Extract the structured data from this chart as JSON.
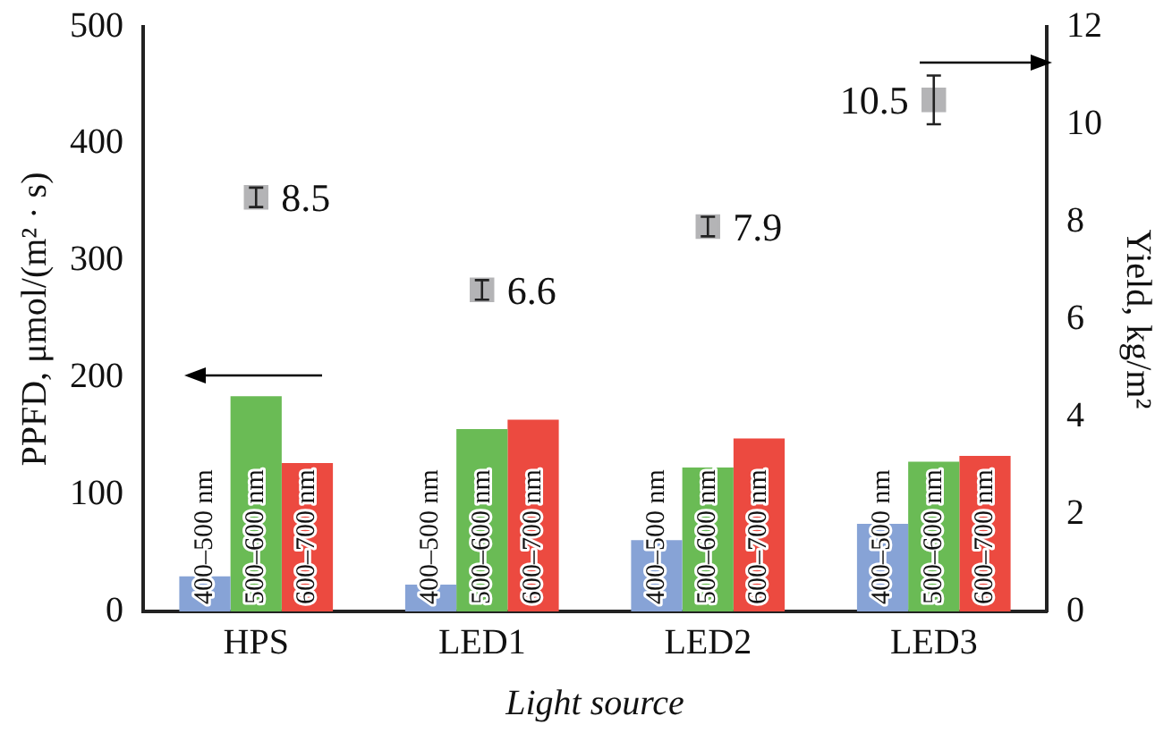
{
  "chart_data": {
    "type": "bar",
    "xlabel": "Light source",
    "ylabel": "PPFD, μmol/(m² · s)",
    "y2label": "Yield, kg/m²",
    "categories": [
      "HPS",
      "LED1",
      "LED2",
      "LED3"
    ],
    "series": [
      {
        "name": "400–500 nm",
        "color": "#87a3d6",
        "values": [
          30,
          23,
          61,
          75
        ]
      },
      {
        "name": "500–600 nm",
        "color": "#6abb55",
        "values": [
          184,
          156,
          123,
          128
        ]
      },
      {
        "name": "600–700 nm",
        "color": "#ec4a40",
        "values": [
          127,
          164,
          148,
          133
        ]
      },
      {
        "type": "scatter",
        "axis": "y2",
        "color": "#b4b4b6",
        "x": [
          "HPS",
          "LED1",
          "LED2",
          "LED3"
        ],
        "values": [
          8.5,
          6.6,
          7.9,
          10.5
        ],
        "errors": [
          0.2,
          0.2,
          0.2,
          0.5
        ],
        "value_labels": [
          "8.5",
          "6.6",
          "7.9",
          "10.5"
        ]
      }
    ],
    "ylim": [
      0,
      500
    ],
    "yticks": [
      0,
      100,
      200,
      300,
      400,
      500
    ],
    "y2lim": [
      0,
      12
    ],
    "y2ticks": [
      0,
      2,
      4,
      6,
      8,
      10,
      12
    ],
    "grid": false,
    "legend": false,
    "marker": "square"
  }
}
